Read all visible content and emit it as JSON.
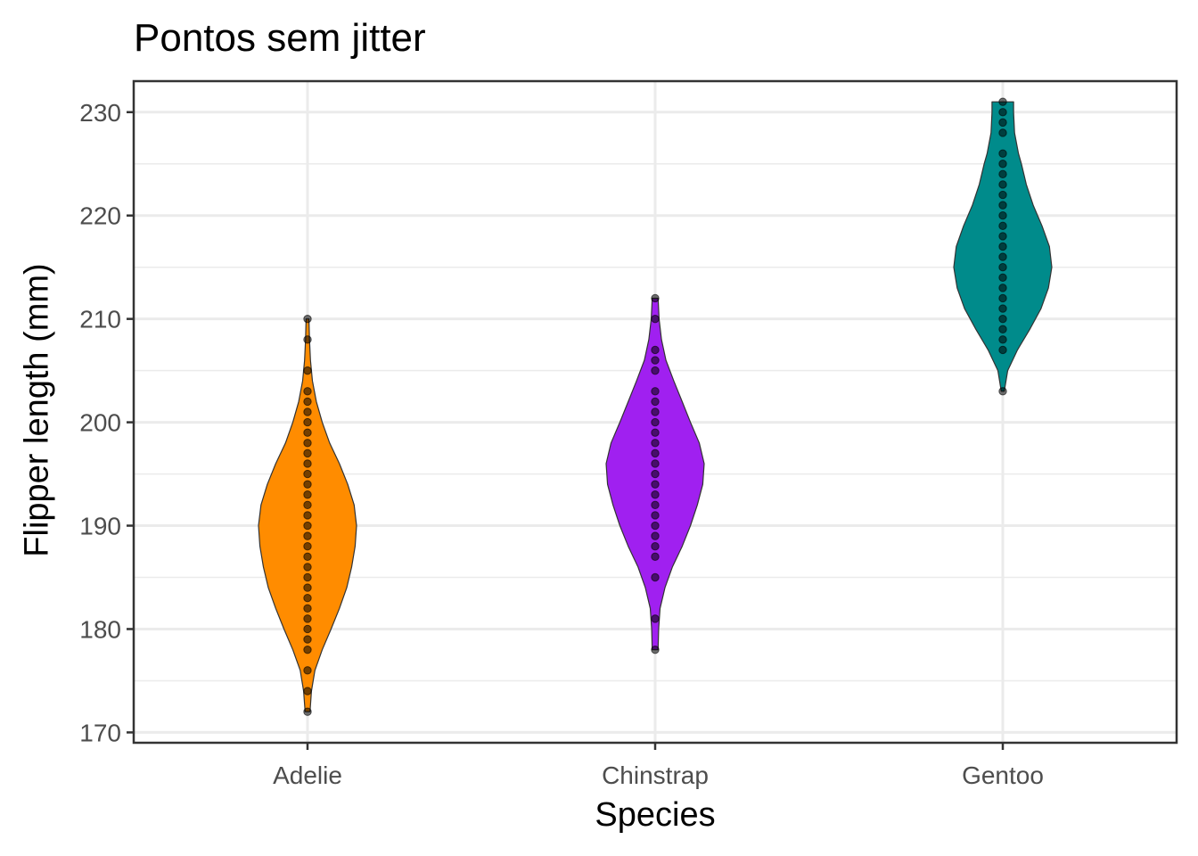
{
  "chart_data": {
    "type": "violin",
    "title": "Pontos sem jitter",
    "xlabel": "Species",
    "ylabel": "Flipper length (mm)",
    "categories": [
      "Adelie",
      "Chinstrap",
      "Gentoo"
    ],
    "ylim": [
      169,
      233
    ],
    "yticks": [
      170,
      180,
      190,
      200,
      210,
      220,
      230
    ],
    "grid": true,
    "fill_colors": {
      "Adelie": "#FF8C00",
      "Chinstrap": "#A020F0",
      "Gentoo": "#008B8B"
    },
    "series": [
      {
        "name": "Adelie",
        "min": 172,
        "max": 210,
        "points": [
          172,
          174,
          176,
          178,
          179,
          180,
          181,
          182,
          183,
          184,
          185,
          186,
          187,
          188,
          189,
          190,
          191,
          192,
          193,
          194,
          195,
          196,
          197,
          198,
          199,
          200,
          201,
          202,
          203,
          205,
          208,
          210
        ],
        "density_profile": [
          [
            172,
            0.05
          ],
          [
            174,
            0.08
          ],
          [
            176,
            0.15
          ],
          [
            178,
            0.3
          ],
          [
            180,
            0.48
          ],
          [
            182,
            0.65
          ],
          [
            184,
            0.8
          ],
          [
            186,
            0.9
          ],
          [
            188,
            0.97
          ],
          [
            190,
            1.0
          ],
          [
            192,
            0.95
          ],
          [
            194,
            0.82
          ],
          [
            196,
            0.65
          ],
          [
            198,
            0.45
          ],
          [
            200,
            0.3
          ],
          [
            202,
            0.18
          ],
          [
            204,
            0.1
          ],
          [
            206,
            0.06
          ],
          [
            208,
            0.04
          ],
          [
            210,
            0.03
          ]
        ]
      },
      {
        "name": "Chinstrap",
        "min": 178,
        "max": 212,
        "points": [
          178,
          181,
          185,
          187,
          188,
          189,
          190,
          191,
          192,
          193,
          194,
          195,
          196,
          197,
          198,
          199,
          200,
          201,
          202,
          203,
          205,
          206,
          207,
          210,
          212
        ],
        "density_profile": [
          [
            178,
            0.06
          ],
          [
            180,
            0.07
          ],
          [
            182,
            0.1
          ],
          [
            184,
            0.2
          ],
          [
            186,
            0.35
          ],
          [
            188,
            0.55
          ],
          [
            190,
            0.72
          ],
          [
            192,
            0.86
          ],
          [
            194,
            0.97
          ],
          [
            196,
            1.0
          ],
          [
            198,
            0.9
          ],
          [
            200,
            0.72
          ],
          [
            202,
            0.55
          ],
          [
            204,
            0.38
          ],
          [
            206,
            0.22
          ],
          [
            208,
            0.13
          ],
          [
            210,
            0.08
          ],
          [
            212,
            0.06
          ]
        ]
      },
      {
        "name": "Gentoo",
        "min": 203,
        "max": 231,
        "points": [
          203,
          207,
          208,
          209,
          210,
          211,
          212,
          213,
          214,
          215,
          216,
          217,
          218,
          219,
          220,
          221,
          222,
          223,
          224,
          225,
          226,
          228,
          229,
          230,
          231
        ],
        "density_profile": [
          [
            203,
            0.03
          ],
          [
            205,
            0.1
          ],
          [
            207,
            0.3
          ],
          [
            209,
            0.55
          ],
          [
            211,
            0.78
          ],
          [
            213,
            0.93
          ],
          [
            215,
            1.0
          ],
          [
            217,
            0.95
          ],
          [
            219,
            0.8
          ],
          [
            221,
            0.62
          ],
          [
            223,
            0.48
          ],
          [
            225,
            0.38
          ],
          [
            226,
            0.32
          ],
          [
            228,
            0.24
          ],
          [
            230,
            0.22
          ],
          [
            231,
            0.22
          ]
        ]
      }
    ]
  }
}
